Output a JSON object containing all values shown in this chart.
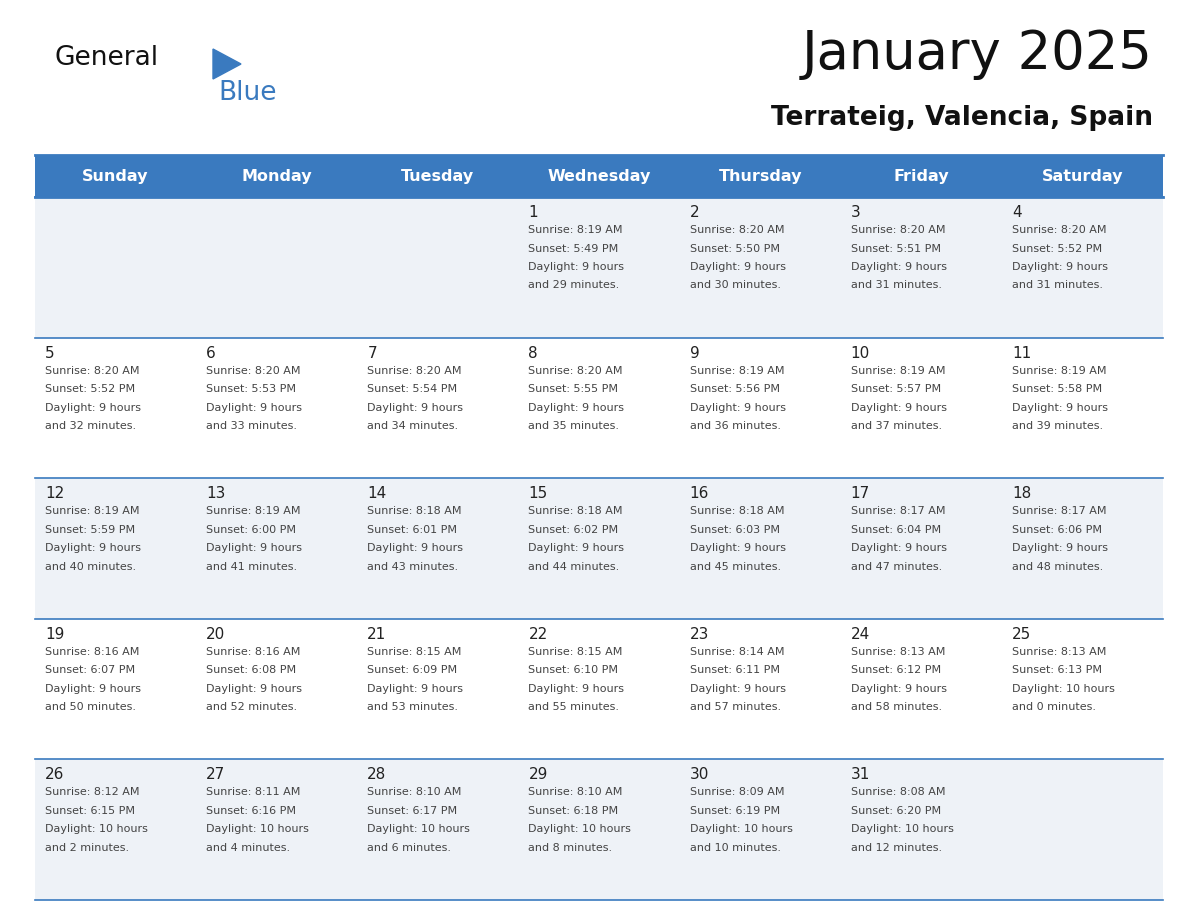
{
  "title": "January 2025",
  "subtitle": "Terrateig, Valencia, Spain",
  "header_bg_color": "#3a7abf",
  "header_text_color": "#ffffff",
  "row_bg_colors": [
    "#eef2f7",
    "#ffffff"
  ],
  "day_names": [
    "Sunday",
    "Monday",
    "Tuesday",
    "Wednesday",
    "Thursday",
    "Friday",
    "Saturday"
  ],
  "grid_line_color": "#3a7abf",
  "text_color": "#444444",
  "day_num_color": "#222222",
  "logo_black": "#111111",
  "logo_blue": "#3a7abf",
  "calendar_data": [
    [
      {
        "day": null,
        "sunrise": null,
        "sunset": null,
        "daylight": null
      },
      {
        "day": null,
        "sunrise": null,
        "sunset": null,
        "daylight": null
      },
      {
        "day": null,
        "sunrise": null,
        "sunset": null,
        "daylight": null
      },
      {
        "day": 1,
        "sunrise": "8:19 AM",
        "sunset": "5:49 PM",
        "daylight_line1": "Daylight: 9 hours",
        "daylight_line2": "and 29 minutes."
      },
      {
        "day": 2,
        "sunrise": "8:20 AM",
        "sunset": "5:50 PM",
        "daylight_line1": "Daylight: 9 hours",
        "daylight_line2": "and 30 minutes."
      },
      {
        "day": 3,
        "sunrise": "8:20 AM",
        "sunset": "5:51 PM",
        "daylight_line1": "Daylight: 9 hours",
        "daylight_line2": "and 31 minutes."
      },
      {
        "day": 4,
        "sunrise": "8:20 AM",
        "sunset": "5:52 PM",
        "daylight_line1": "Daylight: 9 hours",
        "daylight_line2": "and 31 minutes."
      }
    ],
    [
      {
        "day": 5,
        "sunrise": "8:20 AM",
        "sunset": "5:52 PM",
        "daylight_line1": "Daylight: 9 hours",
        "daylight_line2": "and 32 minutes."
      },
      {
        "day": 6,
        "sunrise": "8:20 AM",
        "sunset": "5:53 PM",
        "daylight_line1": "Daylight: 9 hours",
        "daylight_line2": "and 33 minutes."
      },
      {
        "day": 7,
        "sunrise": "8:20 AM",
        "sunset": "5:54 PM",
        "daylight_line1": "Daylight: 9 hours",
        "daylight_line2": "and 34 minutes."
      },
      {
        "day": 8,
        "sunrise": "8:20 AM",
        "sunset": "5:55 PM",
        "daylight_line1": "Daylight: 9 hours",
        "daylight_line2": "and 35 minutes."
      },
      {
        "day": 9,
        "sunrise": "8:19 AM",
        "sunset": "5:56 PM",
        "daylight_line1": "Daylight: 9 hours",
        "daylight_line2": "and 36 minutes."
      },
      {
        "day": 10,
        "sunrise": "8:19 AM",
        "sunset": "5:57 PM",
        "daylight_line1": "Daylight: 9 hours",
        "daylight_line2": "and 37 minutes."
      },
      {
        "day": 11,
        "sunrise": "8:19 AM",
        "sunset": "5:58 PM",
        "daylight_line1": "Daylight: 9 hours",
        "daylight_line2": "and 39 minutes."
      }
    ],
    [
      {
        "day": 12,
        "sunrise": "8:19 AM",
        "sunset": "5:59 PM",
        "daylight_line1": "Daylight: 9 hours",
        "daylight_line2": "and 40 minutes."
      },
      {
        "day": 13,
        "sunrise": "8:19 AM",
        "sunset": "6:00 PM",
        "daylight_line1": "Daylight: 9 hours",
        "daylight_line2": "and 41 minutes."
      },
      {
        "day": 14,
        "sunrise": "8:18 AM",
        "sunset": "6:01 PM",
        "daylight_line1": "Daylight: 9 hours",
        "daylight_line2": "and 43 minutes."
      },
      {
        "day": 15,
        "sunrise": "8:18 AM",
        "sunset": "6:02 PM",
        "daylight_line1": "Daylight: 9 hours",
        "daylight_line2": "and 44 minutes."
      },
      {
        "day": 16,
        "sunrise": "8:18 AM",
        "sunset": "6:03 PM",
        "daylight_line1": "Daylight: 9 hours",
        "daylight_line2": "and 45 minutes."
      },
      {
        "day": 17,
        "sunrise": "8:17 AM",
        "sunset": "6:04 PM",
        "daylight_line1": "Daylight: 9 hours",
        "daylight_line2": "and 47 minutes."
      },
      {
        "day": 18,
        "sunrise": "8:17 AM",
        "sunset": "6:06 PM",
        "daylight_line1": "Daylight: 9 hours",
        "daylight_line2": "and 48 minutes."
      }
    ],
    [
      {
        "day": 19,
        "sunrise": "8:16 AM",
        "sunset": "6:07 PM",
        "daylight_line1": "Daylight: 9 hours",
        "daylight_line2": "and 50 minutes."
      },
      {
        "day": 20,
        "sunrise": "8:16 AM",
        "sunset": "6:08 PM",
        "daylight_line1": "Daylight: 9 hours",
        "daylight_line2": "and 52 minutes."
      },
      {
        "day": 21,
        "sunrise": "8:15 AM",
        "sunset": "6:09 PM",
        "daylight_line1": "Daylight: 9 hours",
        "daylight_line2": "and 53 minutes."
      },
      {
        "day": 22,
        "sunrise": "8:15 AM",
        "sunset": "6:10 PM",
        "daylight_line1": "Daylight: 9 hours",
        "daylight_line2": "and 55 minutes."
      },
      {
        "day": 23,
        "sunrise": "8:14 AM",
        "sunset": "6:11 PM",
        "daylight_line1": "Daylight: 9 hours",
        "daylight_line2": "and 57 minutes."
      },
      {
        "day": 24,
        "sunrise": "8:13 AM",
        "sunset": "6:12 PM",
        "daylight_line1": "Daylight: 9 hours",
        "daylight_line2": "and 58 minutes."
      },
      {
        "day": 25,
        "sunrise": "8:13 AM",
        "sunset": "6:13 PM",
        "daylight_line1": "Daylight: 10 hours",
        "daylight_line2": "and 0 minutes."
      }
    ],
    [
      {
        "day": 26,
        "sunrise": "8:12 AM",
        "sunset": "6:15 PM",
        "daylight_line1": "Daylight: 10 hours",
        "daylight_line2": "and 2 minutes."
      },
      {
        "day": 27,
        "sunrise": "8:11 AM",
        "sunset": "6:16 PM",
        "daylight_line1": "Daylight: 10 hours",
        "daylight_line2": "and 4 minutes."
      },
      {
        "day": 28,
        "sunrise": "8:10 AM",
        "sunset": "6:17 PM",
        "daylight_line1": "Daylight: 10 hours",
        "daylight_line2": "and 6 minutes."
      },
      {
        "day": 29,
        "sunrise": "8:10 AM",
        "sunset": "6:18 PM",
        "daylight_line1": "Daylight: 10 hours",
        "daylight_line2": "and 8 minutes."
      },
      {
        "day": 30,
        "sunrise": "8:09 AM",
        "sunset": "6:19 PM",
        "daylight_line1": "Daylight: 10 hours",
        "daylight_line2": "and 10 minutes."
      },
      {
        "day": 31,
        "sunrise": "8:08 AM",
        "sunset": "6:20 PM",
        "daylight_line1": "Daylight: 10 hours",
        "daylight_line2": "and 12 minutes."
      },
      {
        "day": null,
        "sunrise": null,
        "sunset": null,
        "daylight_line1": null,
        "daylight_line2": null
      }
    ]
  ]
}
